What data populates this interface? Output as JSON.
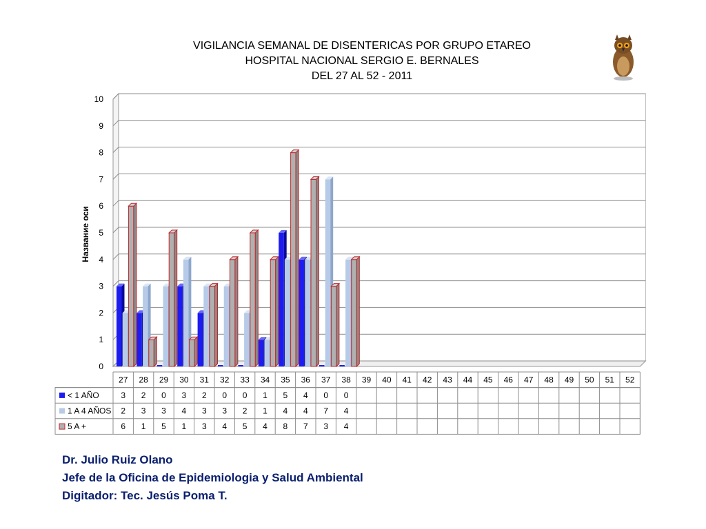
{
  "title_lines": [
    "VIGILANCIA SEMANAL DE DISENTERICAS POR GRUPO ETAREO",
    "HOSPITAL NACIONAL SERGIO E. BERNALES",
    "DEL 27 AL 52 - 2011"
  ],
  "footer": {
    "line1": "Dr.  Julio Ruiz Olano",
    "line2": "Jefe de la Oficina de Epidemiologia y  Salud Ambiental",
    "line3": "Digitador: Tec. Jesús Poma T."
  },
  "logo": {
    "icon": "owl-icon"
  },
  "colors": {
    "series1": "#1c1cf0",
    "series2": "#b7cbe8",
    "series3_fill": "#b0b0b0",
    "series3_edge": "#c0282a",
    "grid": "#8c8c8c"
  },
  "chart_data": {
    "type": "bar",
    "title": "VIGILANCIA SEMANAL DE DISENTERICAS POR GRUPO ETAREO",
    "xlabel": "",
    "ylabel": "Название оси",
    "ylim": [
      0,
      10
    ],
    "yticks": [
      0,
      1,
      2,
      3,
      4,
      5,
      6,
      7,
      8,
      9,
      10
    ],
    "grid": true,
    "legend": "data-table-left",
    "categories": [
      "27",
      "28",
      "29",
      "30",
      "31",
      "32",
      "33",
      "34",
      "35",
      "36",
      "37",
      "38",
      "39",
      "40",
      "41",
      "42",
      "43",
      "44",
      "45",
      "46",
      "47",
      "48",
      "49",
      "50",
      "51",
      "52"
    ],
    "series": [
      {
        "name": "< 1 AÑO",
        "values": [
          3,
          2,
          0,
          3,
          2,
          0,
          0,
          1,
          5,
          4,
          0,
          0,
          null,
          null,
          null,
          null,
          null,
          null,
          null,
          null,
          null,
          null,
          null,
          null,
          null,
          null
        ]
      },
      {
        "name": "1 A 4 AÑOS",
        "values": [
          2,
          3,
          3,
          4,
          3,
          3,
          2,
          1,
          4,
          4,
          7,
          4,
          null,
          null,
          null,
          null,
          null,
          null,
          null,
          null,
          null,
          null,
          null,
          null,
          null,
          null
        ]
      },
      {
        "name": "5 A +",
        "values": [
          6,
          1,
          5,
          1,
          3,
          4,
          5,
          4,
          8,
          7,
          3,
          4,
          null,
          null,
          null,
          null,
          null,
          null,
          null,
          null,
          null,
          null,
          null,
          null,
          null,
          null
        ]
      }
    ]
  }
}
